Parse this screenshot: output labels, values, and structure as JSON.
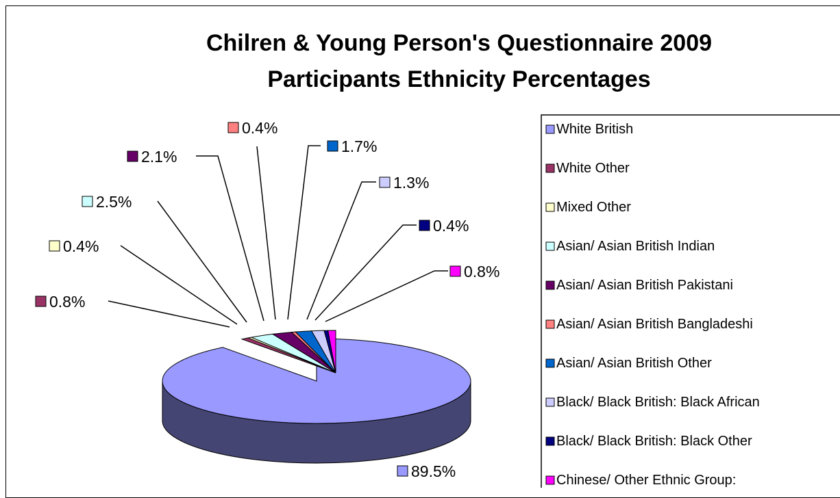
{
  "chart_data": {
    "type": "pie",
    "title_lines": [
      "Chilren & Young Person's Questionnaire 2009",
      "Participants Ethnicity Percentages"
    ],
    "three_d": true,
    "legend_position": "right",
    "slices": [
      {
        "name": "White British",
        "value": 89.5,
        "label": "89.5%",
        "color": "#9999FF"
      },
      {
        "name": "White Other",
        "value": 0.8,
        "label": "0.8%",
        "color": "#993366"
      },
      {
        "name": "Mixed Other",
        "value": 0.4,
        "label": "0.4%",
        "color": "#FFFFCC"
      },
      {
        "name": "Asian/ Asian British Indian",
        "value": 2.5,
        "label": "2.5%",
        "color": "#CCFFFF"
      },
      {
        "name": "Asian/ Asian British Pakistani",
        "value": 2.1,
        "label": "2.1%",
        "color": "#660066"
      },
      {
        "name": "Asian/ Asian British Bangladeshi",
        "value": 0.4,
        "label": "0.4%",
        "color": "#FF8080"
      },
      {
        "name": "Asian/ Asian British Other",
        "value": 1.7,
        "label": "1.7%",
        "color": "#0066CC"
      },
      {
        "name": "Black/ Black British: Black African",
        "value": 1.3,
        "label": "1.3%",
        "color": "#CCCCFF"
      },
      {
        "name": "Black/ Black British: Black Other",
        "value": 0.4,
        "label": "0.4%",
        "color": "#000080"
      },
      {
        "name": "Chinese/ Other Ethnic Group:",
        "value": 0.8,
        "label": "0.8%",
        "color": "#FF00FF"
      }
    ]
  }
}
